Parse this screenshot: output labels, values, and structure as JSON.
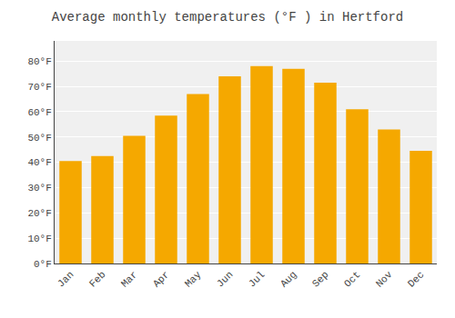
{
  "chart_data": {
    "type": "bar",
    "title": "Average monthly temperatures (°F ) in Hertford",
    "categories": [
      "Jan",
      "Feb",
      "Mar",
      "Apr",
      "May",
      "Jun",
      "Jul",
      "Aug",
      "Sep",
      "Oct",
      "Nov",
      "Dec"
    ],
    "values": [
      40.5,
      42.5,
      50.5,
      58.5,
      67.0,
      74.0,
      78.0,
      77.0,
      71.5,
      61.0,
      53.0,
      44.5
    ],
    "color": "#F5A800",
    "ylim": [
      0,
      88
    ],
    "yticks": [
      {
        "value": 0,
        "label": "0°F"
      },
      {
        "value": 10,
        "label": "10°F"
      },
      {
        "value": 20,
        "label": "20°F"
      },
      {
        "value": 30,
        "label": "30°F"
      },
      {
        "value": 40,
        "label": "40°F"
      },
      {
        "value": 50,
        "label": "50°F"
      },
      {
        "value": 60,
        "label": "60°F"
      },
      {
        "value": 70,
        "label": "70°F"
      },
      {
        "value": 80,
        "label": "80°F"
      }
    ],
    "grid": true
  }
}
